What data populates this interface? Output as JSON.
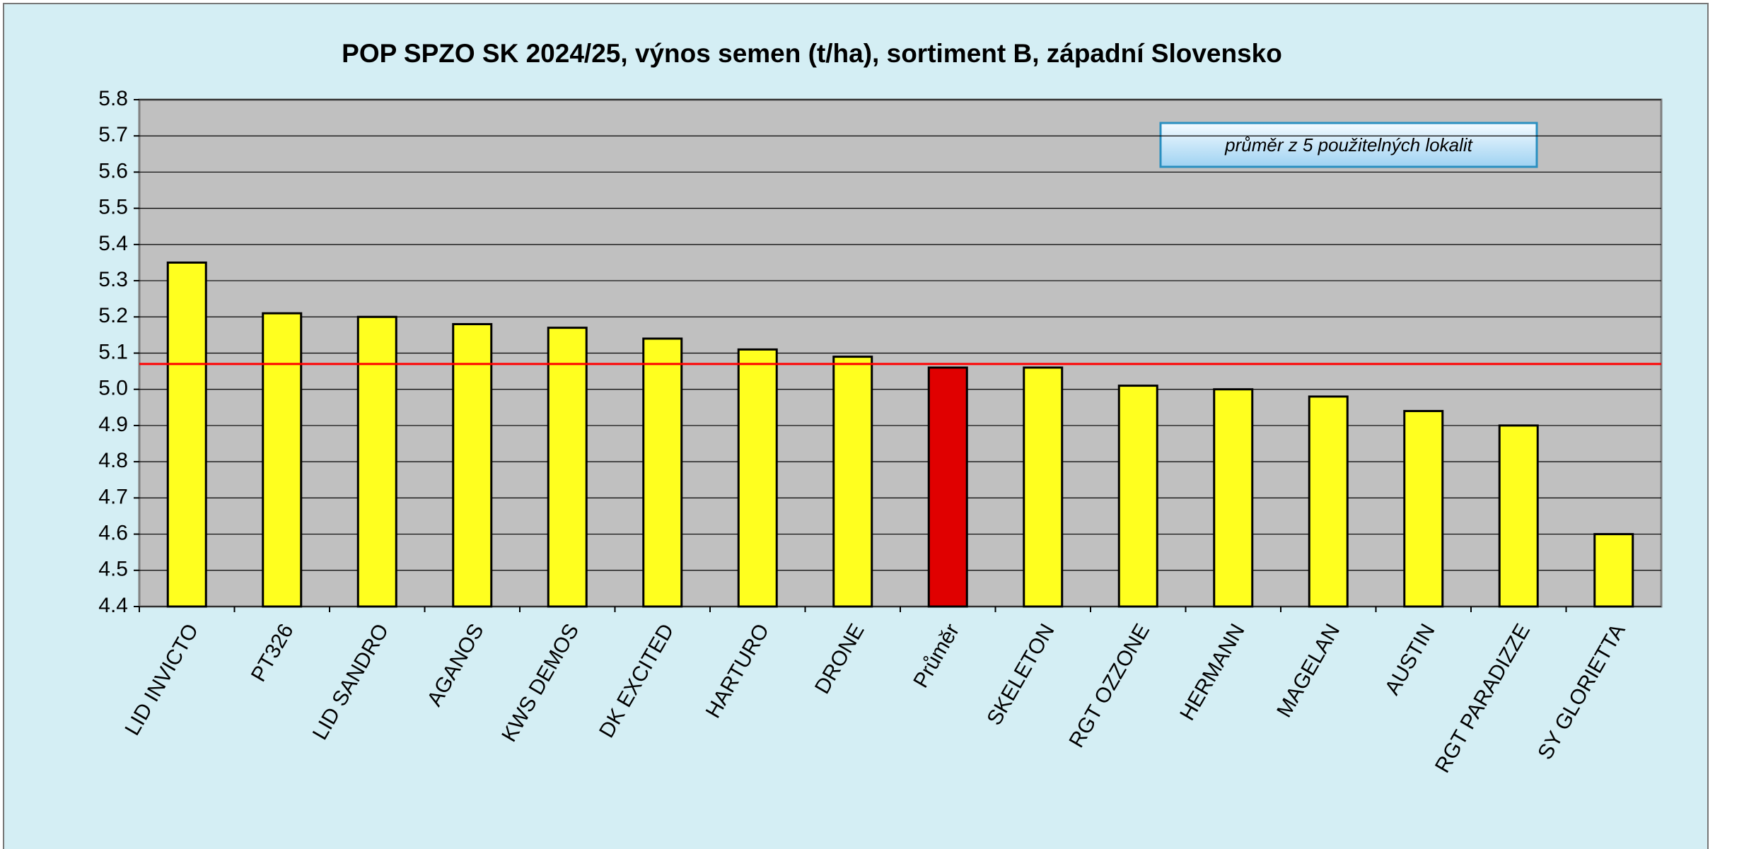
{
  "chart_data": {
    "type": "bar",
    "title": "POP SPZO SK 2024/25, výnos semen (t/ha), sortiment B, západní Slovensko",
    "annotation": "průměr z 5 použitelných lokalit",
    "categories": [
      "LID INVICTO",
      "PT326",
      "LID SANDRO",
      "AGANOS",
      "KWS DEMOS",
      "DK EXCITED",
      "HARTURO",
      "DRONE",
      "Průměr",
      "SKELETON",
      "RGT OZZONE",
      "HERMANN",
      "MAGELAN",
      "AUSTIN",
      "RGT PARADIZZE",
      "SY GLORIETTA"
    ],
    "values": [
      5.35,
      5.21,
      5.2,
      5.18,
      5.17,
      5.14,
      5.11,
      5.09,
      5.06,
      5.06,
      5.01,
      5.0,
      4.98,
      4.94,
      4.9,
      4.6
    ],
    "colors": [
      "#ffff1f",
      "#ffff1f",
      "#ffff1f",
      "#ffff1f",
      "#ffff1f",
      "#ffff1f",
      "#ffff1f",
      "#ffff1f",
      "#e00000",
      "#ffff1f",
      "#ffff1f",
      "#ffff1f",
      "#ffff1f",
      "#ffff1f",
      "#ffff1f",
      "#ffff1f"
    ],
    "reference_line": 5.07,
    "reference_color": "#ff0000",
    "ylim": [
      4.4,
      5.8
    ],
    "yticks": [
      {
        "value": 4.4,
        "label": "4.4"
      },
      {
        "value": 4.5,
        "label": "4.5"
      },
      {
        "value": 4.6,
        "label": "4.6"
      },
      {
        "value": 4.7,
        "label": "4.7"
      },
      {
        "value": 4.8,
        "label": "4.8"
      },
      {
        "value": 4.9,
        "label": "4.9"
      },
      {
        "value": 5.0,
        "label": "5.0"
      },
      {
        "value": 5.1,
        "label": "5.1"
      },
      {
        "value": 5.2,
        "label": "5.2"
      },
      {
        "value": 5.3,
        "label": "5.3"
      },
      {
        "value": 5.4,
        "label": "5.4"
      },
      {
        "value": 5.5,
        "label": "5.5"
      },
      {
        "value": 5.6,
        "label": "5.6"
      },
      {
        "value": 5.7,
        "label": "5.7"
      },
      {
        "value": 5.8,
        "label": "5.8"
      }
    ],
    "grid": true
  }
}
